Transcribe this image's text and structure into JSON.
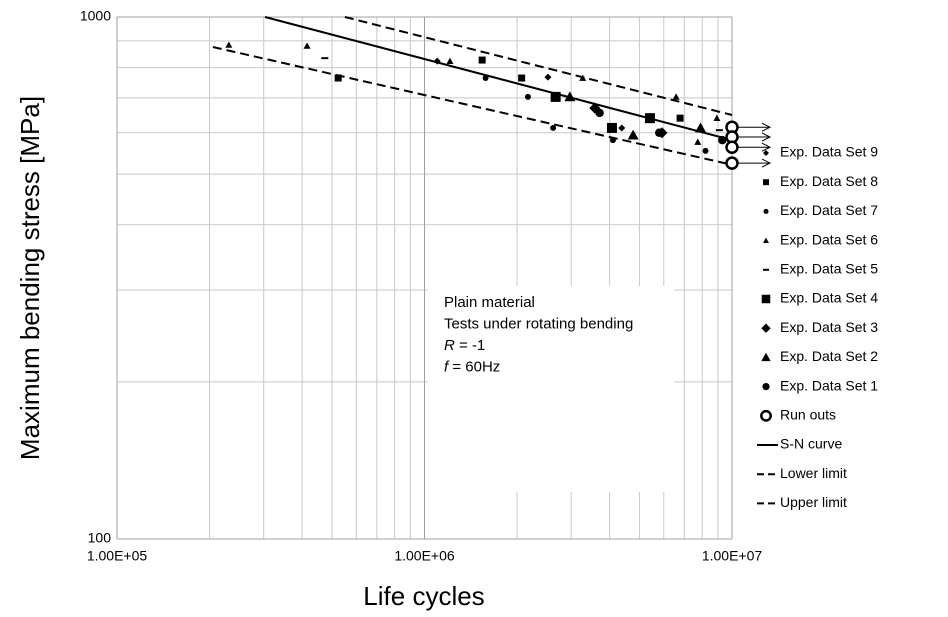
{
  "chart_data": {
    "type": "scatter",
    "xlabel": "Life cycles",
    "ylabel": "Maximum bending stress [MPa]",
    "xscale": "log",
    "yscale": "log",
    "grid": true,
    "legend": "right",
    "color": "#000000",
    "xlim": [
      100000,
      10000000
    ],
    "ylim": [
      100,
      1000
    ],
    "xticks": [
      {
        "value": 100000,
        "label": "1.00E+05"
      },
      {
        "value": 1000000,
        "label": "1.00E+06"
      },
      {
        "value": 10000000,
        "label": "1.00E+07"
      }
    ],
    "yticks": [
      100,
      1000
    ],
    "annotation": [
      [
        {
          "text": "Plain material",
          "italic": false
        }
      ],
      [
        {
          "text": "Tests under rotating bending",
          "italic": false
        }
      ],
      [
        {
          "text": "R",
          "italic": true
        },
        {
          "text": " = -1",
          "italic": false
        }
      ],
      [
        {
          "text": "f",
          "italic": true
        },
        {
          "text": " = 60Hz",
          "italic": false
        }
      ]
    ],
    "series": [
      {
        "name": "Exp. Data Set 9",
        "marker": "diamond",
        "size": 3.5,
        "x": [
          1100000,
          2520000,
          4380000
        ],
        "y": [
          823,
          767,
          613
        ]
      },
      {
        "name": "Exp. Data Set 8",
        "marker": "square",
        "size": 3.5,
        "x": [
          524000,
          1540000,
          2070000,
          6780000
        ],
        "y": [
          764,
          827,
          764,
          640
        ]
      },
      {
        "name": "Exp. Data Set 7",
        "marker": "circle",
        "size": 3.5,
        "x": [
          1580000,
          2170000,
          2620000,
          4100000,
          8200000
        ],
        "y": [
          764,
          703,
          613,
          581,
          554
        ]
      },
      {
        "name": "Exp. Data Set 6",
        "marker": "triangle",
        "size": 3.5,
        "x": [
          231000,
          415000,
          1210000,
          3270000,
          6580000,
          8930000,
          7740000
        ],
        "y": [
          884,
          880,
          823,
          764,
          703,
          640,
          576
        ]
      },
      {
        "name": "Exp. Data Set 5",
        "marker": "dash",
        "size": 3.5,
        "x": [
          474000,
          9100000
        ],
        "y": [
          834,
          607
        ]
      },
      {
        "name": "Exp. Data Set 4",
        "marker": "square",
        "size": 5,
        "x": [
          2670000,
          4070000,
          5410000
        ],
        "y": [
          703,
          613,
          640
        ]
      },
      {
        "name": "Exp. Data Set 3",
        "marker": "diamond",
        "size": 5.5,
        "x": [
          3580000,
          5920000
        ],
        "y": [
          669,
          600
        ]
      },
      {
        "name": "Exp. Data Set 2",
        "marker": "triangle",
        "size": 5.5,
        "x": [
          2970000,
          4770000,
          7900000
        ],
        "y": [
          703,
          594,
          613
        ]
      },
      {
        "name": "Exp. Data Set 1",
        "marker": "circle",
        "size": 5,
        "x": [
          3710000,
          5800000,
          9300000
        ],
        "y": [
          655,
          600,
          581
        ]
      },
      {
        "name": "Run outs",
        "marker": "open-circle",
        "size": 5.5,
        "x": [
          10000000,
          10000000,
          10000000,
          10000000
        ],
        "y": [
          615,
          589,
          563,
          525
        ]
      }
    ],
    "lines": [
      {
        "name": "S-N curve",
        "style": "solid",
        "x": [
          303000,
          10000000
        ],
        "y": [
          1000,
          581
        ]
      },
      {
        "name": "Lower limit",
        "style": "dashed",
        "x": [
          205000,
          10000000
        ],
        "y": [
          876,
          521
        ]
      },
      {
        "name": "Upper limit",
        "style": "dashed",
        "x": [
          551000,
          10000000
        ],
        "y": [
          1000,
          649
        ]
      }
    ]
  }
}
